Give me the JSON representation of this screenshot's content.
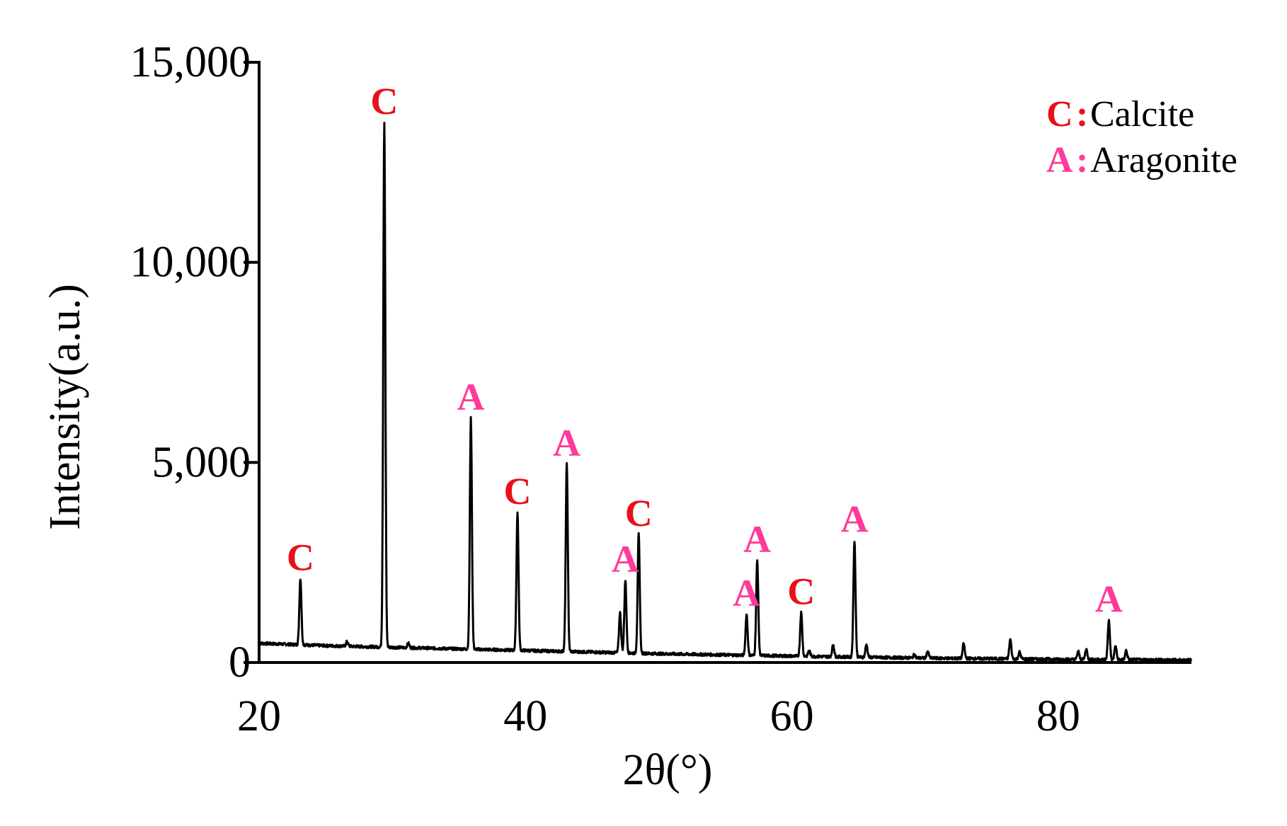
{
  "chart_data": {
    "type": "line",
    "title": "",
    "xlabel": "2θ(°)",
    "ylabel": "Intensity(a.u.)",
    "xlim": [
      20,
      90
    ],
    "ylim": [
      0,
      15000
    ],
    "xticks": [
      20,
      40,
      60,
      80
    ],
    "xtick_labels": [
      "20",
      "40",
      "60",
      "80"
    ],
    "yticks": [
      0,
      5000,
      10000,
      15000
    ],
    "ytick_labels": [
      "0",
      "5,000",
      "10,000",
      "15,000"
    ],
    "grid": false,
    "legend_position": "top-right",
    "legend": [
      {
        "key": "C",
        "sep": ":",
        "label": "Calcite",
        "color": "#e8101a"
      },
      {
        "key": "A",
        "sep": ":",
        "label": "Aragonite",
        "color": "#ff3a9a"
      }
    ],
    "line_color": "#000000",
    "baseline": [
      [
        20,
        480
      ],
      [
        25,
        420
      ],
      [
        30,
        380
      ],
      [
        40,
        300
      ],
      [
        50,
        220
      ],
      [
        60,
        160
      ],
      [
        70,
        110
      ],
      [
        80,
        80
      ],
      [
        90,
        60
      ]
    ],
    "peaks": [
      {
        "x": 23.1,
        "y": 2100,
        "phase": "C"
      },
      {
        "x": 26.6,
        "y": 520,
        "phase": ""
      },
      {
        "x": 29.4,
        "y": 13500,
        "phase": "C"
      },
      {
        "x": 31.2,
        "y": 480,
        "phase": ""
      },
      {
        "x": 35.9,
        "y": 6100,
        "phase": "A"
      },
      {
        "x": 39.4,
        "y": 3750,
        "phase": "C"
      },
      {
        "x": 43.1,
        "y": 4950,
        "phase": "A"
      },
      {
        "x": 47.1,
        "y": 1250,
        "phase": ""
      },
      {
        "x": 47.5,
        "y": 2050,
        "phase": "A"
      },
      {
        "x": 48.5,
        "y": 3200,
        "phase": "C"
      },
      {
        "x": 56.6,
        "y": 1200,
        "phase": "A"
      },
      {
        "x": 57.4,
        "y": 2550,
        "phase": "A"
      },
      {
        "x": 60.7,
        "y": 1250,
        "phase": "C"
      },
      {
        "x": 61.3,
        "y": 300,
        "phase": ""
      },
      {
        "x": 63.1,
        "y": 450,
        "phase": ""
      },
      {
        "x": 64.7,
        "y": 3050,
        "phase": "A"
      },
      {
        "x": 65.6,
        "y": 450,
        "phase": ""
      },
      {
        "x": 69.2,
        "y": 200,
        "phase": ""
      },
      {
        "x": 70.2,
        "y": 280,
        "phase": ""
      },
      {
        "x": 72.9,
        "y": 470,
        "phase": ""
      },
      {
        "x": 76.4,
        "y": 580,
        "phase": ""
      },
      {
        "x": 77.1,
        "y": 260,
        "phase": ""
      },
      {
        "x": 81.5,
        "y": 280,
        "phase": ""
      },
      {
        "x": 82.1,
        "y": 340,
        "phase": ""
      },
      {
        "x": 83.8,
        "y": 1050,
        "phase": "A"
      },
      {
        "x": 84.3,
        "y": 420,
        "phase": ""
      },
      {
        "x": 85.1,
        "y": 300,
        "phase": ""
      }
    ]
  }
}
